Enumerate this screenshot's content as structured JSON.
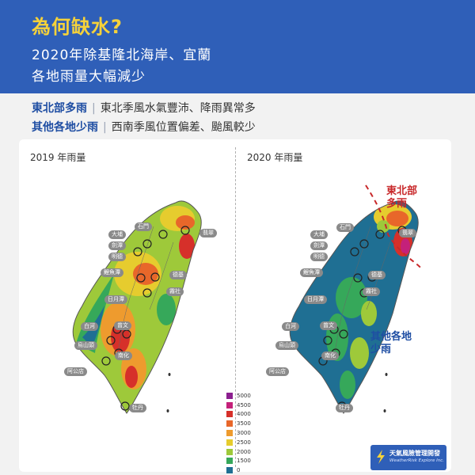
{
  "header": {
    "title": "為何缺水?",
    "subtitle_line1": "2020年除基隆北海岸、宜蘭",
    "subtitle_line2": "各地雨量大幅減少"
  },
  "summary": [
    {
      "key": "東北部多雨",
      "desc": "東北季風水氣豐沛、降雨異常多"
    },
    {
      "key": "其他各地少雨",
      "desc": "西南季風位置偏差、颱風較少"
    }
  ],
  "maps": {
    "left_title": "2019 年雨量",
    "right_title": "2020 年雨量"
  },
  "colors": {
    "header_bg": "#2f5fb8",
    "title_yellow": "#f6d23a",
    "annotation_red": "#c8282a",
    "annotation_blue": "#1f4ea3"
  },
  "rain_scale": [
    {
      "value": "5000",
      "color": "#8b1f8f"
    },
    {
      "value": "4500",
      "color": "#c4217a"
    },
    {
      "value": "4000",
      "color": "#d6302a"
    },
    {
      "value": "3500",
      "color": "#e8672a"
    },
    {
      "value": "3000",
      "color": "#ee9b2e"
    },
    {
      "value": "2500",
      "color": "#e6cc2e"
    },
    {
      "value": "2000",
      "color": "#9ec93a"
    },
    {
      "value": "1500",
      "color": "#36a85a"
    },
    {
      "value": "0",
      "color": "#1f6f93"
    }
  ],
  "places": {
    "shimen": "石門",
    "dapu": "大埔",
    "qiaotan": "劍潭",
    "mingde": "明德",
    "liyutan": "鯉魚潭",
    "deji": "德基",
    "sunmoon": "日月潭",
    "wushe": "霧社",
    "baihe": "白河",
    "zengwen": "曾文",
    "wushantou": "烏山頭",
    "nanhua": "南化",
    "agongdian": "阿公店",
    "mudan": "牡丹",
    "feicui": "翡翠"
  },
  "annotations": {
    "northeast": [
      "東北部",
      "多雨"
    ],
    "others": [
      "其他各地",
      "少雨"
    ]
  },
  "logo": {
    "name": "天氣風險管理開發",
    "english": "WeatherRisk Explore Inc."
  }
}
